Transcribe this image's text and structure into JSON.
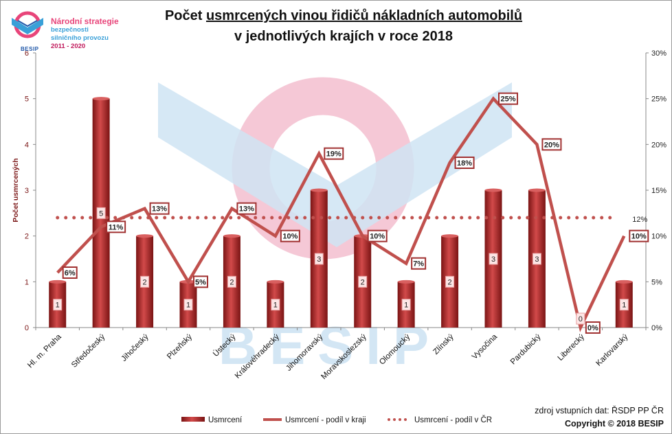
{
  "logo": {
    "line1": "Národní strategie",
    "line2": "bezpečnosti",
    "line3": "silničního provozu",
    "years": "2011 - 2020",
    "brand": "BESIP"
  },
  "title": {
    "line1_pre": "Počet ",
    "line1_underlined": "usmrcených vinou řidičů nákladních automobilů",
    "line2": "v jednotlivých krajích v roce 2018"
  },
  "watermark": "BESIP",
  "footer": {
    "source": "zdroj vstupních dat: ŘSDP PP ČR",
    "copyright": "Copyright © 2018  BESIP"
  },
  "colors": {
    "bar": "#b02a2a",
    "bar_light": "#d96060",
    "line": "#c0504d",
    "axis_text": "#7a1515",
    "label_border": "#a03030"
  },
  "chart_data": {
    "type": "bar",
    "categories": [
      "Hl. m. Praha",
      "Středočeský",
      "Jihočeský",
      "Plzeňský",
      "Ústecký",
      "Královéhradecký",
      "Jihomoravský",
      "Moravskoslezský",
      "Olomoucký",
      "Zlínský",
      "Vysočina",
      "Pardubický",
      "Liberecký",
      "Karlovarský"
    ],
    "ylabel": "Počet usmrcených",
    "ylim": [
      0,
      6
    ],
    "yticks": [
      "0",
      "1",
      "2",
      "3",
      "4",
      "5",
      "6"
    ],
    "y2lim": [
      0,
      30
    ],
    "y2ticks": [
      "0%",
      "5%",
      "10%",
      "15%",
      "20%",
      "25%",
      "30%"
    ],
    "grid": false,
    "legend_position": "bottom",
    "series": [
      {
        "name": "Usmrcení",
        "type": "bar",
        "axis": "left",
        "values": [
          1,
          5,
          2,
          1,
          2,
          1,
          3,
          2,
          1,
          2,
          3,
          3,
          0,
          1
        ],
        "labels": [
          "1",
          "5",
          "2",
          "1",
          "2",
          "1",
          "3",
          "2",
          "1",
          "2",
          "3",
          "3",
          "0",
          "1"
        ]
      },
      {
        "name": "Usmrcení - podíl v kraji",
        "type": "line",
        "axis": "right",
        "values": [
          6,
          11,
          13,
          5,
          13,
          10,
          19,
          10,
          7,
          18,
          25,
          20,
          0,
          10
        ],
        "labels": [
          "6%",
          "11%",
          "13%",
          "5%",
          "13%",
          "10%",
          "19%",
          "10%",
          "7%",
          "18%",
          "25%",
          "20%",
          "0%",
          "10%"
        ]
      },
      {
        "name": "Usmrcení - podíl v ČR",
        "type": "dotted-line",
        "axis": "right",
        "value": 12,
        "label": "12%"
      }
    ]
  }
}
